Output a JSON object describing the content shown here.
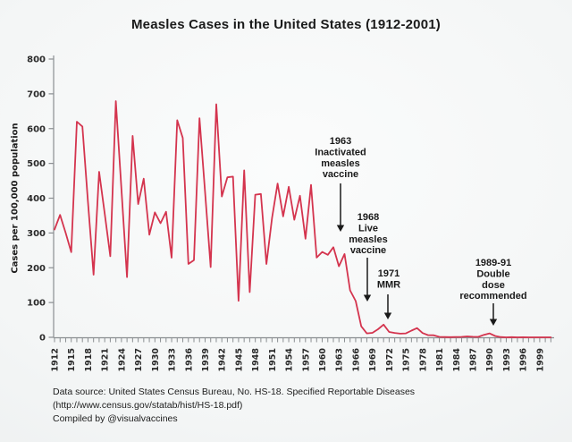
{
  "title": "Measles Cases in the United States (1912-2001)",
  "colors": {
    "line": "#d4344e",
    "text": "#1a1a1a",
    "axis": "#8a8e91",
    "tick_label": "#2a2a2a",
    "background_center": "#fbfcfc",
    "background_edge": "#e7eaeb"
  },
  "y_axis": {
    "label": "Cases per 100,000 population",
    "min": 0,
    "max": 800,
    "tick_step": 100,
    "ticks": [
      0,
      100,
      200,
      300,
      400,
      500,
      600,
      700,
      800
    ]
  },
  "x_axis": {
    "start_year": 1912,
    "end_year": 2001,
    "minor_tick_every": 1,
    "label_every": 3,
    "tick_labels": [
      "1912",
      "1915",
      "1918",
      "1921",
      "1924",
      "1927",
      "1930",
      "1933",
      "1936",
      "1939",
      "1942",
      "1945",
      "1948",
      "1951",
      "1954",
      "1957",
      "1960",
      "1963",
      "1966",
      "1969",
      "1972",
      "1975",
      "1978",
      "1981",
      "1984",
      "1987",
      "1990",
      "1993",
      "1996",
      "1999"
    ]
  },
  "chart_data": {
    "type": "line",
    "title": "Measles Cases in the United States (1912-2001)",
    "xlabel": "",
    "ylabel": "Cases per 100,000 population",
    "x_start": 1912,
    "x_end": 2001,
    "ylim": [
      0,
      800
    ],
    "grid": false,
    "legend": "none",
    "values": [
      310,
      352,
      300,
      245,
      620,
      606,
      390,
      180,
      476,
      355,
      233,
      679,
      425,
      173,
      579,
      383,
      456,
      295,
      359,
      328,
      361,
      229,
      624,
      573,
      211,
      222,
      630,
      416,
      202,
      670,
      405,
      460,
      462,
      105,
      480,
      130,
      410,
      412,
      211,
      343.3,
      442.3,
      347.9,
      432.7,
      337.9,
      407,
      283.4,
      438.2,
      229.3,
      245.4,
      237.2,
      259,
      204.2,
      239.4,
      135.1,
      104.2,
      31.7,
      11.3,
      12.8,
      23.2,
      36.5,
      15.5,
      12.7,
      10.5,
      11.3,
      19.2,
      26.5,
      12.3,
      6.2,
      5.9,
      1.4,
      0.7,
      0.6,
      1.1,
      1.2,
      2.6,
      1.5,
      1.4,
      7.3,
      11.2,
      3.8,
      0.9,
      0.1,
      0.4,
      0.1,
      0.2,
      0.1,
      0.04,
      0.04,
      0.03,
      0.04
    ],
    "annotations": [
      {
        "year": 1963,
        "label_lines": [
          "1963",
          "Inactivated",
          "measles",
          "vaccine"
        ],
        "cx": 381,
        "text_top": 161,
        "arrow_x": 381,
        "arrow_y1": 205,
        "arrow_y2": 259
      },
      {
        "year": 1968,
        "label_lines": [
          "1968",
          "Live",
          "measles",
          "vaccine"
        ],
        "cx": 412,
        "text_top": 246,
        "arrow_x": 411,
        "arrow_y1": 288,
        "arrow_y2": 337
      },
      {
        "year": 1971,
        "label_lines": [
          "1971",
          "MMR"
        ],
        "cx": 435,
        "text_top": 309,
        "arrow_x": 434,
        "arrow_y1": 329,
        "arrow_y2": 357
      },
      {
        "year": 1990,
        "label_lines": [
          "1989-91",
          "Double",
          "dose",
          "recommended"
        ],
        "cx": 552,
        "text_top": 297,
        "arrow_x": 552,
        "arrow_y1": 339,
        "arrow_y2": 364
      }
    ]
  },
  "footer": {
    "line1": "Data source: United States Census Bureau, No. HS-18. Specified Reportable Diseases",
    "line2": "(http://www.census.gov/statab/hist/HS-18.pdf)",
    "line3": "Compiled by @visualvaccines"
  }
}
